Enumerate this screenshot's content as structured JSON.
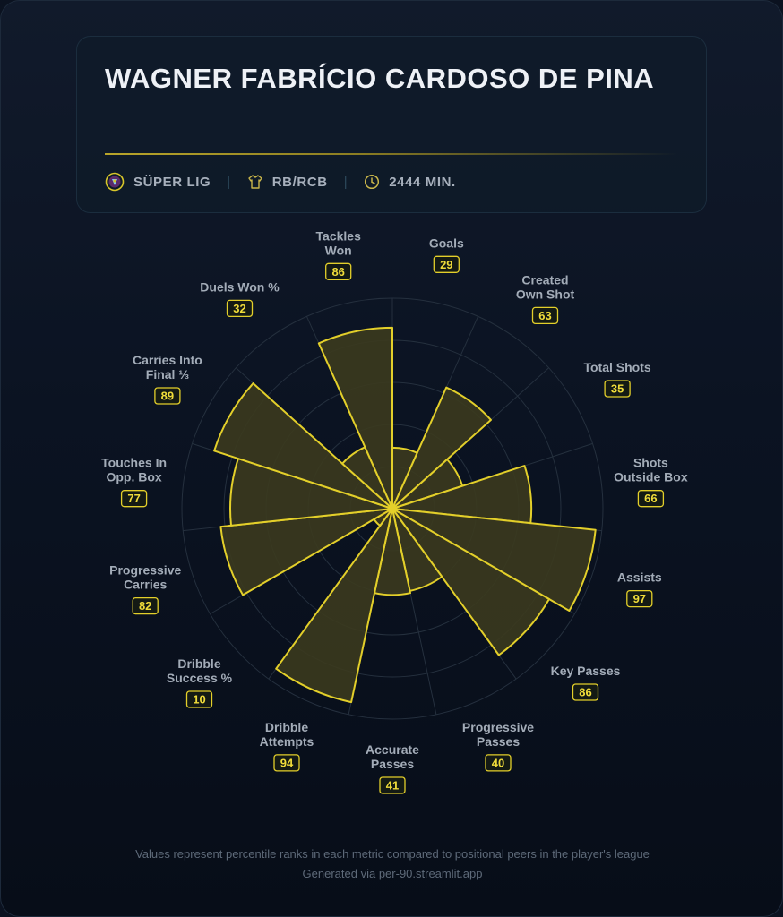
{
  "player": {
    "name": "WAGNER FABRÍCIO CARDOSO DE PINA",
    "league": "SÜPER LIG",
    "position": "RB/RCB",
    "minutes": "2444 MIN."
  },
  "icons": {
    "league": "club-badge-icon",
    "position": "shirt-icon",
    "minutes": "clock-icon"
  },
  "colors": {
    "accent": "#e3cf2a",
    "fill": "#3b3a1e",
    "grid": "#25303e",
    "label": "#a3acb8",
    "background": "#0b1220"
  },
  "chart_data": {
    "type": "polar-area",
    "scale": [
      0,
      100
    ],
    "categories": [
      "Goals",
      "Created Own Shot",
      "Total Shots",
      "Shots Outside Box",
      "Assists",
      "Key Passes",
      "Progressive Passes",
      "Accurate Passes",
      "Dribble Attempts",
      "Dribble Success %",
      "Progressive Carries",
      "Touches In Opp. Box",
      "Carries Into Final ⅓",
      "Duels Won %",
      "Tackles Won"
    ],
    "label_lines": [
      [
        "Goals"
      ],
      [
        "Created",
        "Own Shot"
      ],
      [
        "Total Shots"
      ],
      [
        "Shots",
        "Outside Box"
      ],
      [
        "Assists"
      ],
      [
        "Key Passes"
      ],
      [
        "Progressive",
        "Passes"
      ],
      [
        "Accurate",
        "Passes"
      ],
      [
        "Dribble",
        "Attempts"
      ],
      [
        "Dribble",
        "Success %"
      ],
      [
        "Progressive",
        "Carries"
      ],
      [
        "Touches In",
        "Opp. Box"
      ],
      [
        "Carries Into",
        "Final ⅓"
      ],
      [
        "Duels Won %"
      ],
      [
        "Tackles",
        "Won"
      ]
    ],
    "values": [
      29,
      63,
      35,
      66,
      97,
      86,
      40,
      41,
      94,
      10,
      82,
      77,
      89,
      32,
      86
    ]
  },
  "footer": {
    "note": "Values represent percentile ranks in each metric compared to positional peers in the player's league",
    "credit": "Generated via per-90.streamlit.app"
  }
}
